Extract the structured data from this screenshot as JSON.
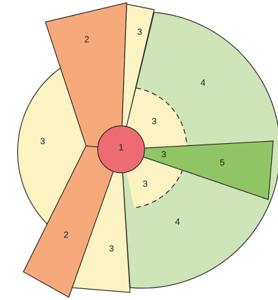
{
  "diagram": {
    "colors": {
      "zone1": "#ef6b72",
      "zone2": "#f6a97a",
      "zone3": "#fcf3c3",
      "zone4": "#cfe4b7",
      "zone5": "#90c565",
      "outline": "#2b2b2b",
      "background": "#ffffff"
    },
    "labels": {
      "center": "1",
      "wedge_top_left": "2",
      "wedge_bottom_left": "2",
      "wedge_top_narrow": "3",
      "left_lobe": "3",
      "bottom_wedge": "3",
      "inner_upper": "3",
      "inner_middle": "3",
      "inner_lower": "3",
      "outer_upper_right": "4",
      "outer_lower_right": "4",
      "right_wedge": "5"
    }
  }
}
